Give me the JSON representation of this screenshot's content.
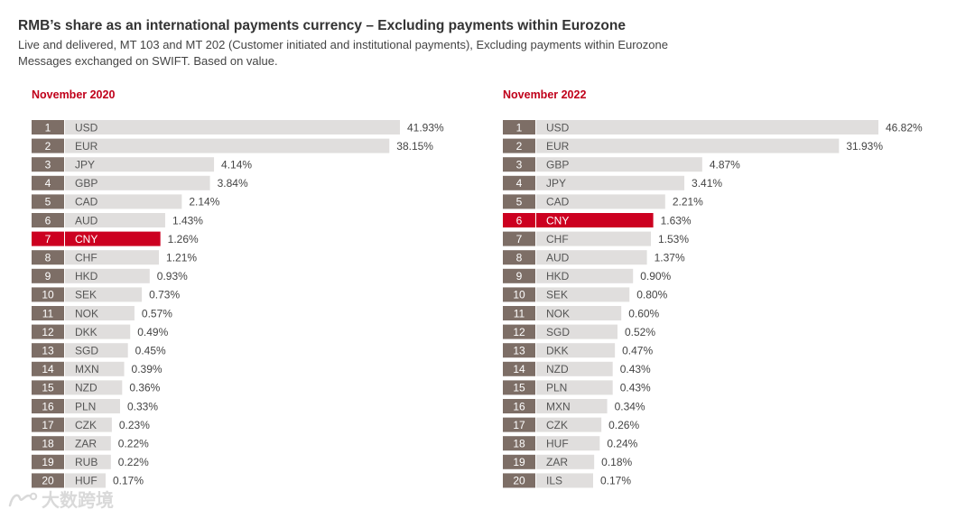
{
  "title": "RMB’s share as an international payments currency – Excluding payments within Eurozone",
  "subtitle_line1": "Live and delivered, MT 103 and MT 202 (Customer initiated and institutional payments), Excluding payments within Eurozone",
  "subtitle_line2": "Messages exchanged on SWIFT. Based on value.",
  "watermark_text": "大数跨境",
  "colors": {
    "rank_box": "#7d6e66",
    "bar": "#e0dedd",
    "highlight": "#cc0020",
    "panel_title": "#c0001a"
  },
  "chart_data": [
    {
      "type": "bar",
      "orientation": "horizontal",
      "title": "November 2020",
      "highlight": "CNY",
      "ranks": [
        1,
        2,
        3,
        4,
        5,
        6,
        7,
        8,
        9,
        10,
        11,
        12,
        13,
        14,
        15,
        16,
        17,
        18,
        19,
        20
      ],
      "categories": [
        "USD",
        "EUR",
        "JPY",
        "GBP",
        "CAD",
        "AUD",
        "CNY",
        "CHF",
        "HKD",
        "SEK",
        "NOK",
        "DKK",
        "SGD",
        "MXN",
        "NZD",
        "PLN",
        "CZK",
        "ZAR",
        "RUB",
        "HUF"
      ],
      "values": [
        41.93,
        38.15,
        4.14,
        3.84,
        2.14,
        1.43,
        1.26,
        1.21,
        0.93,
        0.73,
        0.57,
        0.49,
        0.45,
        0.39,
        0.36,
        0.33,
        0.23,
        0.22,
        0.22,
        0.17
      ],
      "labels": [
        "41.93%",
        "38.15%",
        "4.14%",
        "3.84%",
        "2.14%",
        "1.43%",
        "1.26%",
        "1.21%",
        "0.93%",
        "0.73%",
        "0.57%",
        "0.49%",
        "0.45%",
        "0.39%",
        "0.36%",
        "0.33%",
        "0.23%",
        "0.22%",
        "0.22%",
        "0.17%"
      ]
    },
    {
      "type": "bar",
      "orientation": "horizontal",
      "title": "November 2022",
      "highlight": "CNY",
      "ranks": [
        1,
        2,
        3,
        4,
        5,
        6,
        7,
        8,
        9,
        10,
        11,
        12,
        13,
        14,
        15,
        16,
        17,
        18,
        19,
        20
      ],
      "categories": [
        "USD",
        "EUR",
        "GBP",
        "JPY",
        "CAD",
        "CNY",
        "CHF",
        "AUD",
        "HKD",
        "SEK",
        "NOK",
        "SGD",
        "DKK",
        "NZD",
        "PLN",
        "MXN",
        "CZK",
        "HUF",
        "ZAR",
        "ILS"
      ],
      "values": [
        46.82,
        31.93,
        4.87,
        3.41,
        2.21,
        1.63,
        1.53,
        1.37,
        0.9,
        0.8,
        0.6,
        0.52,
        0.47,
        0.43,
        0.43,
        0.34,
        0.26,
        0.24,
        0.18,
        0.17
      ],
      "labels": [
        "46.82%",
        "31.93%",
        "4.87%",
        "3.41%",
        "2.21%",
        "1.63%",
        "1.53%",
        "1.37%",
        "0.90%",
        "0.80%",
        "0.60%",
        "0.52%",
        "0.47%",
        "0.43%",
        "0.43%",
        "0.34%",
        "0.26%",
        "0.24%",
        "0.18%",
        "0.17%"
      ]
    }
  ]
}
